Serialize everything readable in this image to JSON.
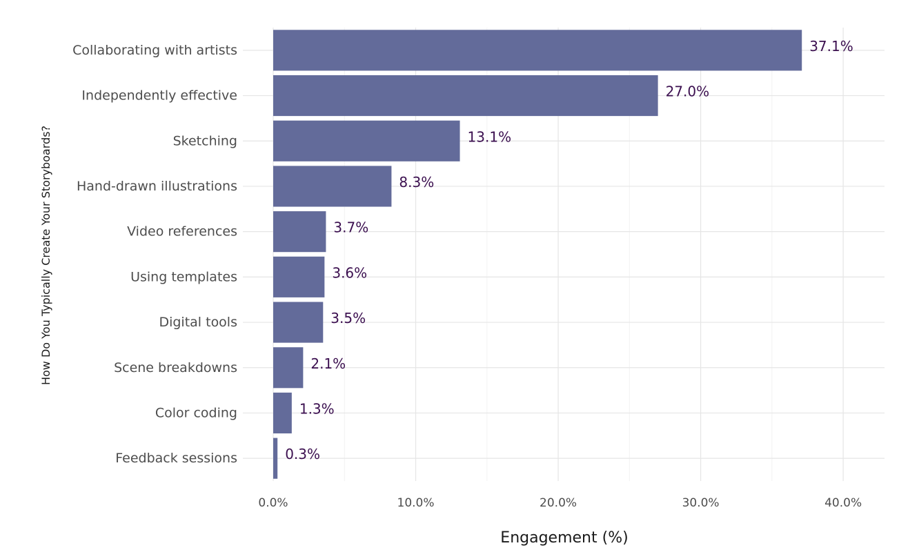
{
  "chart_data": {
    "type": "bar",
    "orientation": "horizontal",
    "categories": [
      "Collaborating with artists",
      "Independently effective",
      "Sketching",
      "Hand-drawn illustrations",
      "Video references",
      "Using templates",
      "Digital tools",
      "Scene breakdowns",
      "Color coding",
      "Feedback sessions"
    ],
    "values": [
      37.1,
      27.0,
      13.1,
      8.3,
      3.7,
      3.6,
      3.5,
      2.1,
      1.3,
      0.3
    ],
    "value_labels": [
      "37.1%",
      "27.0%",
      "13.1%",
      "8.3%",
      "3.7%",
      "3.6%",
      "3.5%",
      "2.1%",
      "1.3%",
      "0.3%"
    ],
    "xlabel": "Engagement (%)",
    "ylabel": "How Do You Typically Create Your Storyboards?",
    "xlim": [
      0,
      42.9
    ],
    "xticks": [
      0,
      10,
      20,
      30,
      40
    ],
    "xtick_labels": [
      "0.0%",
      "10.0%",
      "20.0%",
      "30.0%",
      "40.0%"
    ],
    "grid": true,
    "legend": "none",
    "colors": {
      "bar": "#636b9a",
      "data_label": "#3b0f4f",
      "grid": "#e5e5e5",
      "grid_minor": "#f2f2f2"
    }
  }
}
